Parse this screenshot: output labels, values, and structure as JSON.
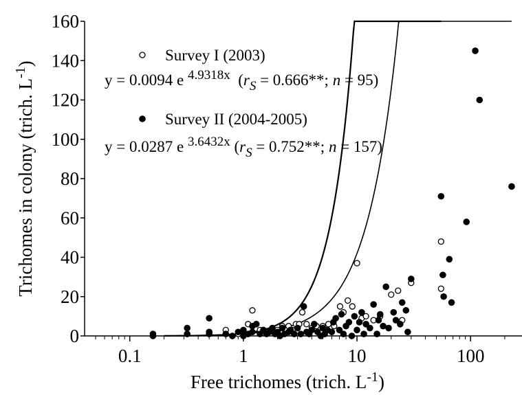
{
  "chart_data": {
    "type": "scatter",
    "x_scale": "log",
    "y_scale": "linear",
    "xlim": [
      0.04,
      300
    ],
    "ylim": [
      0,
      160
    ],
    "x_ticks": [
      {
        "value": 0.1,
        "label": "0.1"
      },
      {
        "value": 1,
        "label": "1"
      },
      {
        "value": 10,
        "label": "10"
      },
      {
        "value": 100,
        "label": "100"
      }
    ],
    "y_ticks": [
      {
        "value": 0,
        "label": "0"
      },
      {
        "value": 20,
        "label": "20"
      },
      {
        "value": 40,
        "label": "40"
      },
      {
        "value": 60,
        "label": "60"
      },
      {
        "value": 80,
        "label": "80"
      },
      {
        "value": 100,
        "label": "100"
      },
      {
        "value": 120,
        "label": "120"
      },
      {
        "value": 140,
        "label": "140"
      },
      {
        "value": 160,
        "label": "160"
      }
    ],
    "xlabel": {
      "main": "Free trichomes (trich. L",
      "sup": "-1",
      "tail": ")"
    },
    "ylabel": {
      "main": "Trichomes in colony (trich. L",
      "sup": "-1",
      "tail": ")"
    },
    "grid": false,
    "legend_position": "top-left",
    "series": [
      {
        "name": "Survey I (2003)",
        "marker": "open-circle",
        "color": "#000000",
        "equation": {
          "prefix": "y = 0.0094 e ",
          "exponent": "4.9318x",
          "r_open": "  (",
          "r_letter": "r",
          "r_sub": "S",
          "r_mid": " = 0.666**; ",
          "n_letter": "n",
          "n_tail": " = 95)"
        },
        "fit": {
          "a": 0.0094,
          "b": 4.9318,
          "x_from": 0.2,
          "x_to": 55
        },
        "points": [
          [
            0.5,
            2
          ],
          [
            0.7,
            3
          ],
          [
            0.9,
            1
          ],
          [
            1.1,
            6
          ],
          [
            1.2,
            13
          ],
          [
            1.4,
            3
          ],
          [
            1.6,
            2
          ],
          [
            1.8,
            4
          ],
          [
            2.0,
            3
          ],
          [
            2.2,
            5
          ],
          [
            2.5,
            5
          ],
          [
            2.7,
            3
          ],
          [
            2.9,
            6
          ],
          [
            3.1,
            6
          ],
          [
            3.3,
            12
          ],
          [
            3.6,
            6
          ],
          [
            4.0,
            4
          ],
          [
            4.4,
            5
          ],
          [
            5.0,
            5
          ],
          [
            5.6,
            6
          ],
          [
            6.3,
            5
          ],
          [
            7.1,
            15
          ],
          [
            7.6,
            12
          ],
          [
            8.3,
            18
          ],
          [
            9.1,
            15
          ],
          [
            10,
            37
          ],
          [
            11,
            9
          ],
          [
            12,
            10
          ],
          [
            14,
            8
          ],
          [
            16,
            10
          ],
          [
            20,
            21
          ],
          [
            23,
            23
          ],
          [
            25,
            8
          ],
          [
            30,
            27
          ],
          [
            55,
            24
          ],
          [
            55,
            48
          ]
        ]
      },
      {
        "name": "Survey II (2004-2005)",
        "marker": "filled-circle",
        "color": "#000000",
        "equation": {
          "prefix": "y = 0.0287 e ",
          "exponent": "3.6432x",
          "r_open": " (",
          "r_letter": "r",
          "r_sub": "S",
          "r_mid": " = 0.752**; ",
          "n_letter": "n",
          "n_tail": " = 157)"
        },
        "fit": {
          "a": 0.0287,
          "b": 3.6432,
          "x_from": 0.2,
          "x_to": 230
        },
        "points": [
          [
            0.16,
            0
          ],
          [
            0.16,
            1
          ],
          [
            0.32,
            1
          ],
          [
            0.32,
            4
          ],
          [
            0.5,
            1
          ],
          [
            0.5,
            2
          ],
          [
            0.5,
            9
          ],
          [
            0.7,
            1
          ],
          [
            0.8,
            0
          ],
          [
            0.9,
            2
          ],
          [
            1.0,
            3
          ],
          [
            1.0,
            0
          ],
          [
            1.1,
            1
          ],
          [
            1.2,
            2
          ],
          [
            1.2,
            5
          ],
          [
            1.3,
            6
          ],
          [
            1.4,
            1
          ],
          [
            1.5,
            3
          ],
          [
            1.6,
            1
          ],
          [
            1.7,
            2
          ],
          [
            1.8,
            4
          ],
          [
            1.9,
            1
          ],
          [
            2.0,
            2
          ],
          [
            2.1,
            0
          ],
          [
            2.2,
            4
          ],
          [
            2.3,
            1
          ],
          [
            2.5,
            2
          ],
          [
            2.6,
            3
          ],
          [
            2.8,
            1
          ],
          [
            3.0,
            4
          ],
          [
            3.2,
            1
          ],
          [
            3.4,
            15
          ],
          [
            3.6,
            2
          ],
          [
            3.8,
            1
          ],
          [
            4.0,
            3
          ],
          [
            4.2,
            6
          ],
          [
            4.5,
            2
          ],
          [
            4.8,
            0
          ],
          [
            5.0,
            4
          ],
          [
            5.2,
            1
          ],
          [
            5.5,
            3
          ],
          [
            6.0,
            2
          ],
          [
            6.2,
            7
          ],
          [
            6.5,
            9
          ],
          [
            7.0,
            3
          ],
          [
            7.3,
            11
          ],
          [
            7.6,
            1
          ],
          [
            8.0,
            5
          ],
          [
            8.5,
            7
          ],
          [
            9.0,
            0
          ],
          [
            9.5,
            10
          ],
          [
            10,
            3
          ],
          [
            10.5,
            7
          ],
          [
            11,
            12
          ],
          [
            11.5,
            1
          ],
          [
            12,
            6
          ],
          [
            13,
            4
          ],
          [
            14,
            16
          ],
          [
            15,
            1
          ],
          [
            15.5,
            8
          ],
          [
            16,
            11
          ],
          [
            17,
            5
          ],
          [
            18,
            25
          ],
          [
            19,
            4
          ],
          [
            21,
            12
          ],
          [
            22,
            8
          ],
          [
            24,
            6
          ],
          [
            25,
            17
          ],
          [
            27,
            13
          ],
          [
            28,
            2
          ],
          [
            30,
            29
          ],
          [
            55,
            71
          ],
          [
            57,
            31
          ],
          [
            58,
            20
          ],
          [
            65,
            39
          ],
          [
            68,
            17
          ],
          [
            92,
            58
          ],
          [
            110,
            145
          ],
          [
            120,
            120
          ],
          [
            230,
            76
          ]
        ]
      }
    ]
  }
}
